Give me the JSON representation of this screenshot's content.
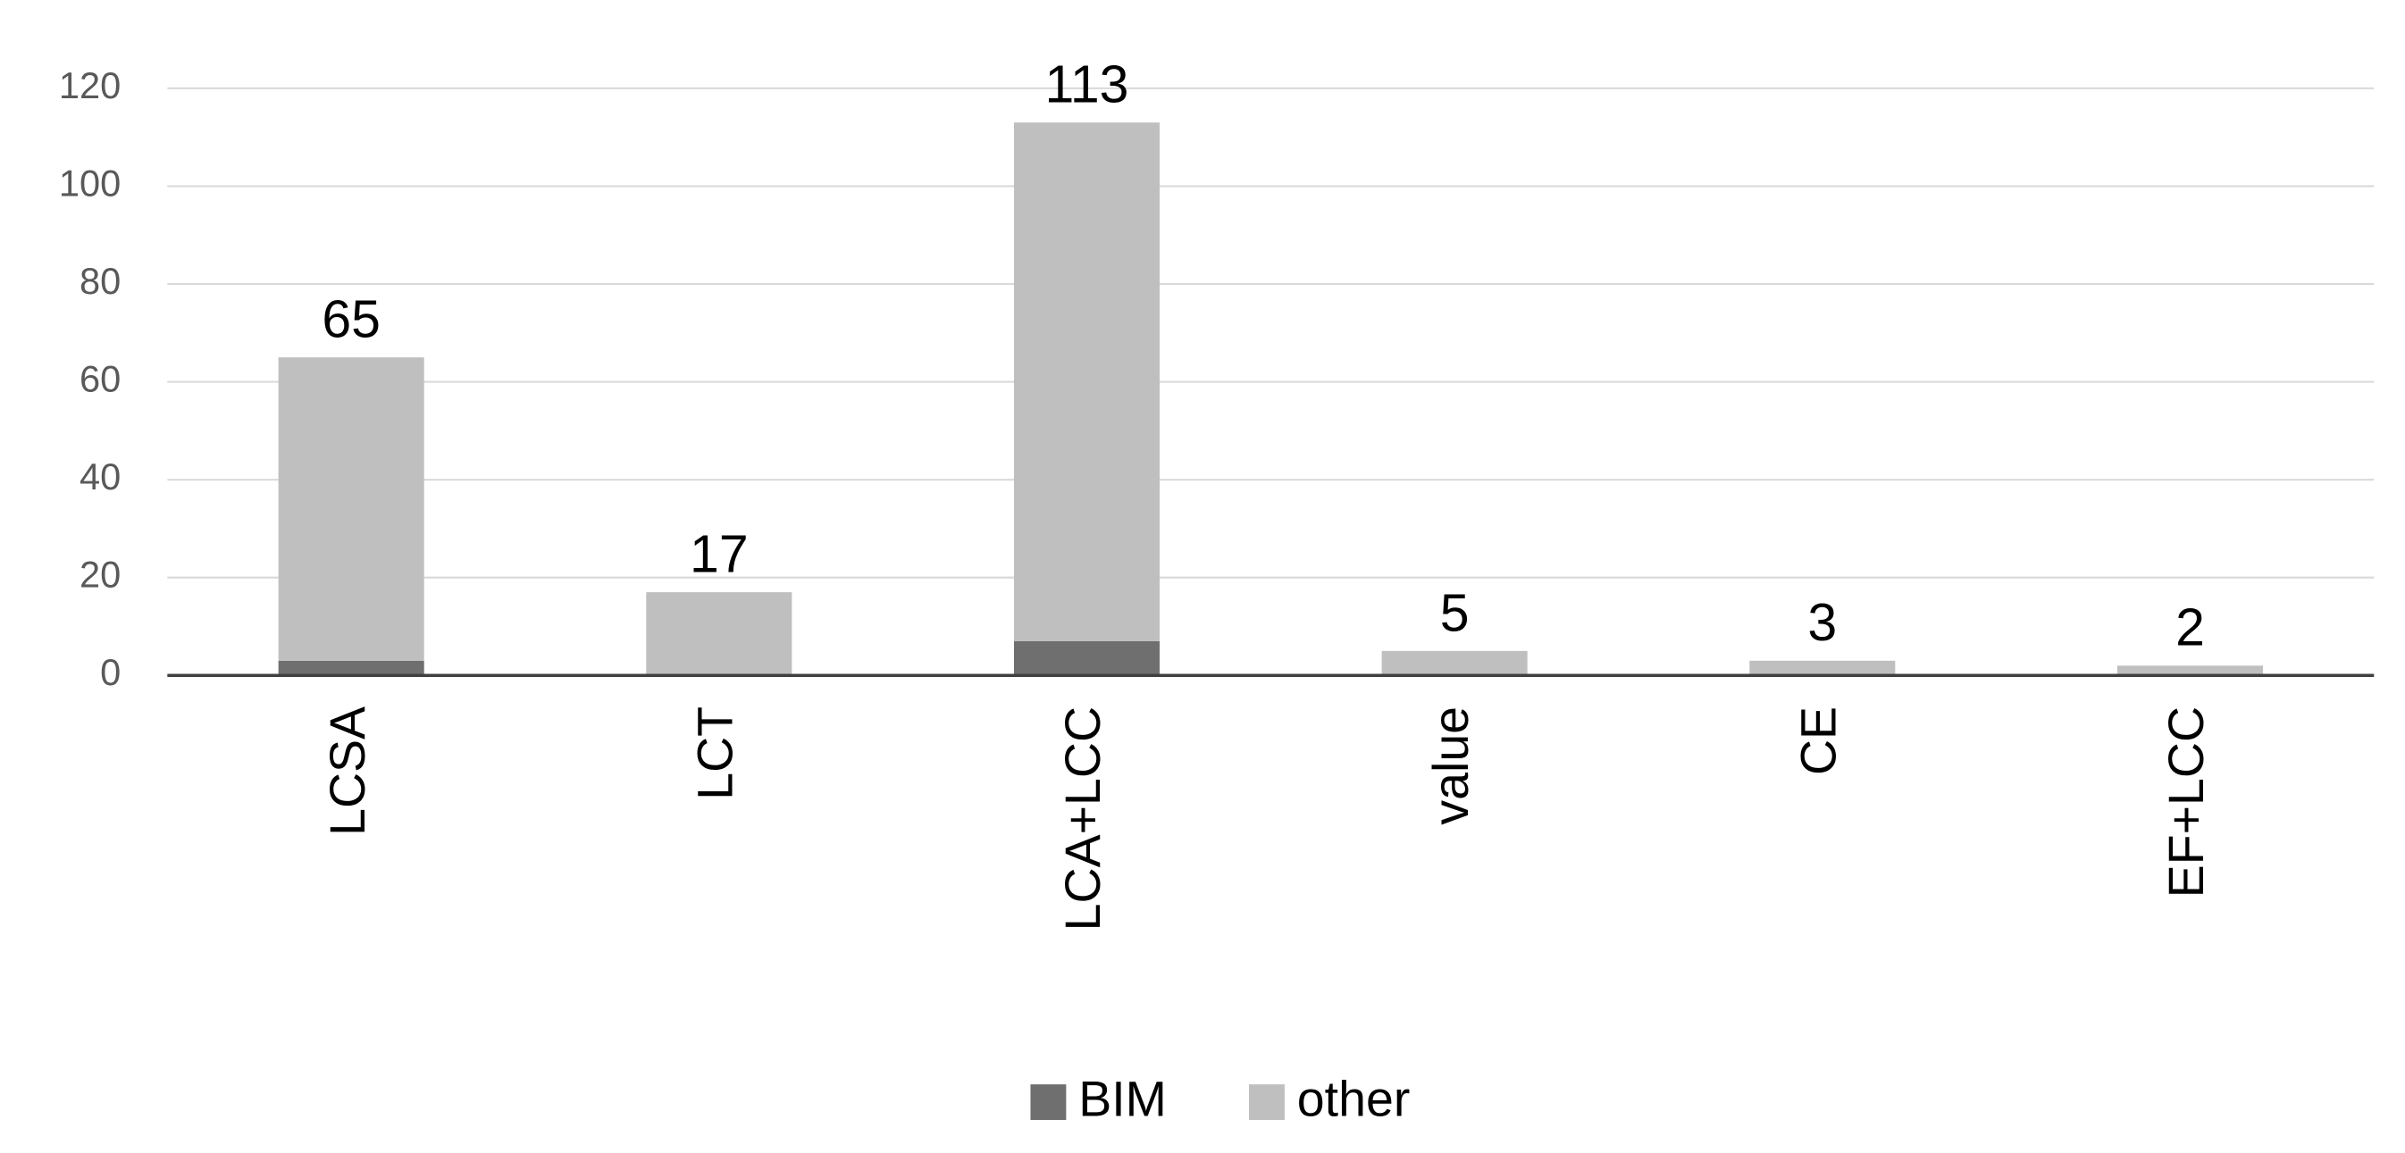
{
  "chart_data": {
    "type": "stacked-bar",
    "categories": [
      "LCSA",
      "LCT",
      "LCA+LCC",
      "value",
      "CE",
      "EF+LCC"
    ],
    "series": [
      {
        "name": "BIM",
        "color": "#6f6f6f",
        "values": [
          3,
          0,
          7,
          0,
          0,
          0
        ]
      },
      {
        "name": "other",
        "color": "#bfbfbf",
        "values": [
          62,
          17,
          106,
          5,
          3,
          2
        ]
      }
    ],
    "totals": [
      65,
      17,
      113,
      5,
      3,
      2
    ],
    "ylim": [
      0,
      120
    ],
    "yticks": [
      0,
      20,
      40,
      60,
      80,
      100,
      120
    ],
    "grid": true,
    "legend": "bottom"
  }
}
